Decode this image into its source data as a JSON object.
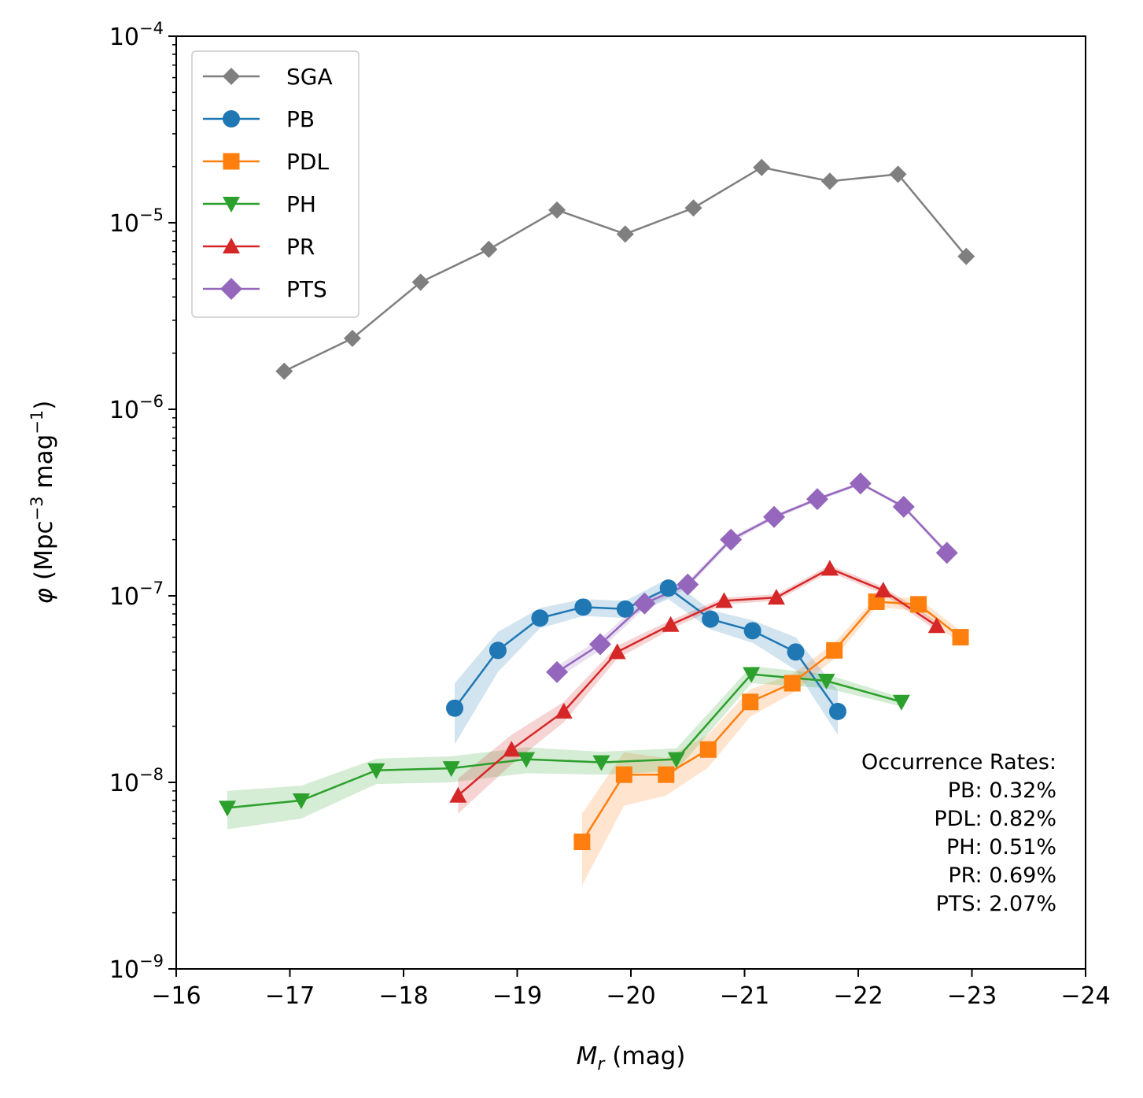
{
  "chart_data": {
    "type": "line",
    "xlabel_main": "M",
    "xlabel_sub": "r",
    "xlabel_unit": " (mag)",
    "ylabel_phi": "φ",
    "ylabel_part1": " (Mpc",
    "ylabel_exp1": "−3",
    "ylabel_part2": " mag",
    "ylabel_exp2": "−1",
    "ylabel_part3": ")",
    "y_scale": "log",
    "xlim": [
      -16,
      -24
    ],
    "ylim": [
      1e-09,
      0.0001
    ],
    "x_ticks": [
      {
        "value": -16,
        "label": "−16"
      },
      {
        "value": -17,
        "label": "−17"
      },
      {
        "value": -18,
        "label": "−18"
      },
      {
        "value": -19,
        "label": "−19"
      },
      {
        "value": -20,
        "label": "−20"
      },
      {
        "value": -21,
        "label": "−21"
      },
      {
        "value": -22,
        "label": "−22"
      },
      {
        "value": -23,
        "label": "−23"
      },
      {
        "value": -24,
        "label": "−24"
      }
    ],
    "y_ticks": [
      {
        "value": 0.0001,
        "base": "10",
        "exp": "−4"
      },
      {
        "value": 1e-05,
        "base": "10",
        "exp": "−5"
      },
      {
        "value": 1e-06,
        "base": "10",
        "exp": "−6"
      },
      {
        "value": 1e-07,
        "base": "10",
        "exp": "−7"
      },
      {
        "value": 1e-08,
        "base": "10",
        "exp": "−8"
      },
      {
        "value": 1e-09,
        "base": "10",
        "exp": "−9"
      }
    ],
    "legend_position": "upper-left",
    "series": [
      {
        "name": "SGA",
        "color": "#7f7f7f",
        "marker": "diamond-small",
        "x": [
          -16.95,
          -17.55,
          -18.15,
          -18.75,
          -19.35,
          -19.95,
          -20.55,
          -21.15,
          -21.75,
          -22.35,
          -22.95
        ],
        "y": [
          1.6e-06,
          2.4e-06,
          4.8e-06,
          7.2e-06,
          1.17e-05,
          8.7e-06,
          1.2e-05,
          1.98e-05,
          1.67e-05,
          1.82e-05,
          6.6e-06
        ]
      },
      {
        "name": "PB",
        "color": "#1f77b4",
        "marker": "circle",
        "x": [
          -18.45,
          -18.83,
          -19.2,
          -19.58,
          -19.95,
          -20.33,
          -20.7,
          -21.07,
          -21.45,
          -21.82
        ],
        "y": [
          2.5e-08,
          5.1e-08,
          7.6e-08,
          8.7e-08,
          8.5e-08,
          1.1e-07,
          7.5e-08,
          6.5e-08,
          5e-08,
          2.4e-08
        ],
        "band_lo": [
          1.6e-08,
          3.9e-08,
          6.7e-08,
          7.8e-08,
          7.6e-08,
          9.6e-08,
          6.6e-08,
          5.6e-08,
          4e-08,
          1.8e-08
        ],
        "band_hi": [
          3.4e-08,
          6.4e-08,
          8.6e-08,
          9.6e-08,
          9.4e-08,
          1.24e-07,
          8.4e-08,
          7.4e-08,
          6e-08,
          3.1e-08
        ]
      },
      {
        "name": "PDL",
        "color": "#ff7f0e",
        "marker": "square",
        "x": [
          -19.57,
          -19.94,
          -20.31,
          -20.68,
          -21.05,
          -21.42,
          -21.79,
          -22.16,
          -22.53,
          -22.9
        ],
        "y": [
          4.8e-09,
          1.1e-08,
          1.1e-08,
          1.5e-08,
          2.7e-08,
          3.4e-08,
          5.1e-08,
          9.3e-08,
          9e-08,
          6e-08
        ],
        "band_lo": [
          2.8e-09,
          7.5e-09,
          8.5e-09,
          1.2e-08,
          2.25e-08,
          3e-08,
          4.6e-08,
          8.7e-08,
          8.3e-08,
          5.5e-08
        ],
        "band_hi": [
          6.8e-09,
          1.45e-08,
          1.35e-08,
          1.8e-08,
          3.15e-08,
          3.8e-08,
          5.6e-08,
          9.9e-08,
          9.7e-08,
          6.5e-08
        ]
      },
      {
        "name": "PH",
        "color": "#2ca02c",
        "marker": "triangle-down",
        "x": [
          -16.45,
          -17.1,
          -17.76,
          -18.42,
          -19.08,
          -19.74,
          -20.4,
          -21.06,
          -21.72,
          -22.38
        ],
        "y": [
          7.3e-09,
          8e-09,
          1.16e-08,
          1.19e-08,
          1.33e-08,
          1.28e-08,
          1.33e-08,
          3.8e-08,
          3.5e-08,
          2.7e-08
        ],
        "band_lo": [
          5.6e-09,
          6.4e-09,
          9.8e-09,
          1e-08,
          1.12e-08,
          1.1e-08,
          1.15e-08,
          3.4e-08,
          3.2e-08,
          2.55e-08
        ],
        "band_hi": [
          9e-09,
          9.6e-09,
          1.34e-08,
          1.38e-08,
          1.54e-08,
          1.46e-08,
          1.52e-08,
          4.2e-08,
          3.8e-08,
          2.85e-08
        ]
      },
      {
        "name": "PR",
        "color": "#d62728",
        "marker": "triangle-up",
        "x": [
          -18.48,
          -18.95,
          -19.41,
          -19.88,
          -20.35,
          -20.82,
          -21.28,
          -21.75,
          -22.22,
          -22.69
        ],
        "y": [
          8.5e-09,
          1.5e-08,
          2.4e-08,
          5e-08,
          7e-08,
          9.4e-08,
          9.8e-08,
          1.4e-07,
          1.07e-07,
          6.9e-08
        ],
        "band_lo": [
          6.8e-09,
          1.25e-08,
          2.1e-08,
          4.6e-08,
          6.6e-08,
          9e-08,
          9.4e-08,
          1.34e-07,
          1.02e-07,
          6.5e-08
        ],
        "band_hi": [
          1.05e-08,
          1.8e-08,
          2.7e-08,
          5.4e-08,
          7.4e-08,
          9.8e-08,
          1.02e-07,
          1.46e-07,
          1.12e-07,
          7.3e-08
        ]
      },
      {
        "name": "PTS",
        "color": "#9467bd",
        "marker": "diamond",
        "x": [
          -19.35,
          -19.73,
          -20.12,
          -20.5,
          -20.88,
          -21.26,
          -21.64,
          -22.02,
          -22.4,
          -22.78
        ],
        "y": [
          3.9e-08,
          5.5e-08,
          9.1e-08,
          1.15e-07,
          2e-07,
          2.65e-07,
          3.3e-07,
          4e-07,
          3e-07,
          1.7e-07
        ],
        "band_lo": [
          3.6e-08,
          5.1e-08,
          8.6e-08,
          1.1e-07,
          1.93e-07,
          2.58e-07,
          3.22e-07,
          3.92e-07,
          2.93e-07,
          1.64e-07
        ],
        "band_hi": [
          4.2e-08,
          5.9e-08,
          9.6e-08,
          1.2e-07,
          2.07e-07,
          2.72e-07,
          3.38e-07,
          4.08e-07,
          3.07e-07,
          1.76e-07
        ]
      }
    ],
    "annotation": {
      "title": "Occurrence Rates:",
      "lines": [
        "PB: 0.32%",
        "PDL: 0.82%",
        "PH: 0.51%",
        "PR: 0.69%",
        "PTS: 2.07%"
      ]
    }
  }
}
